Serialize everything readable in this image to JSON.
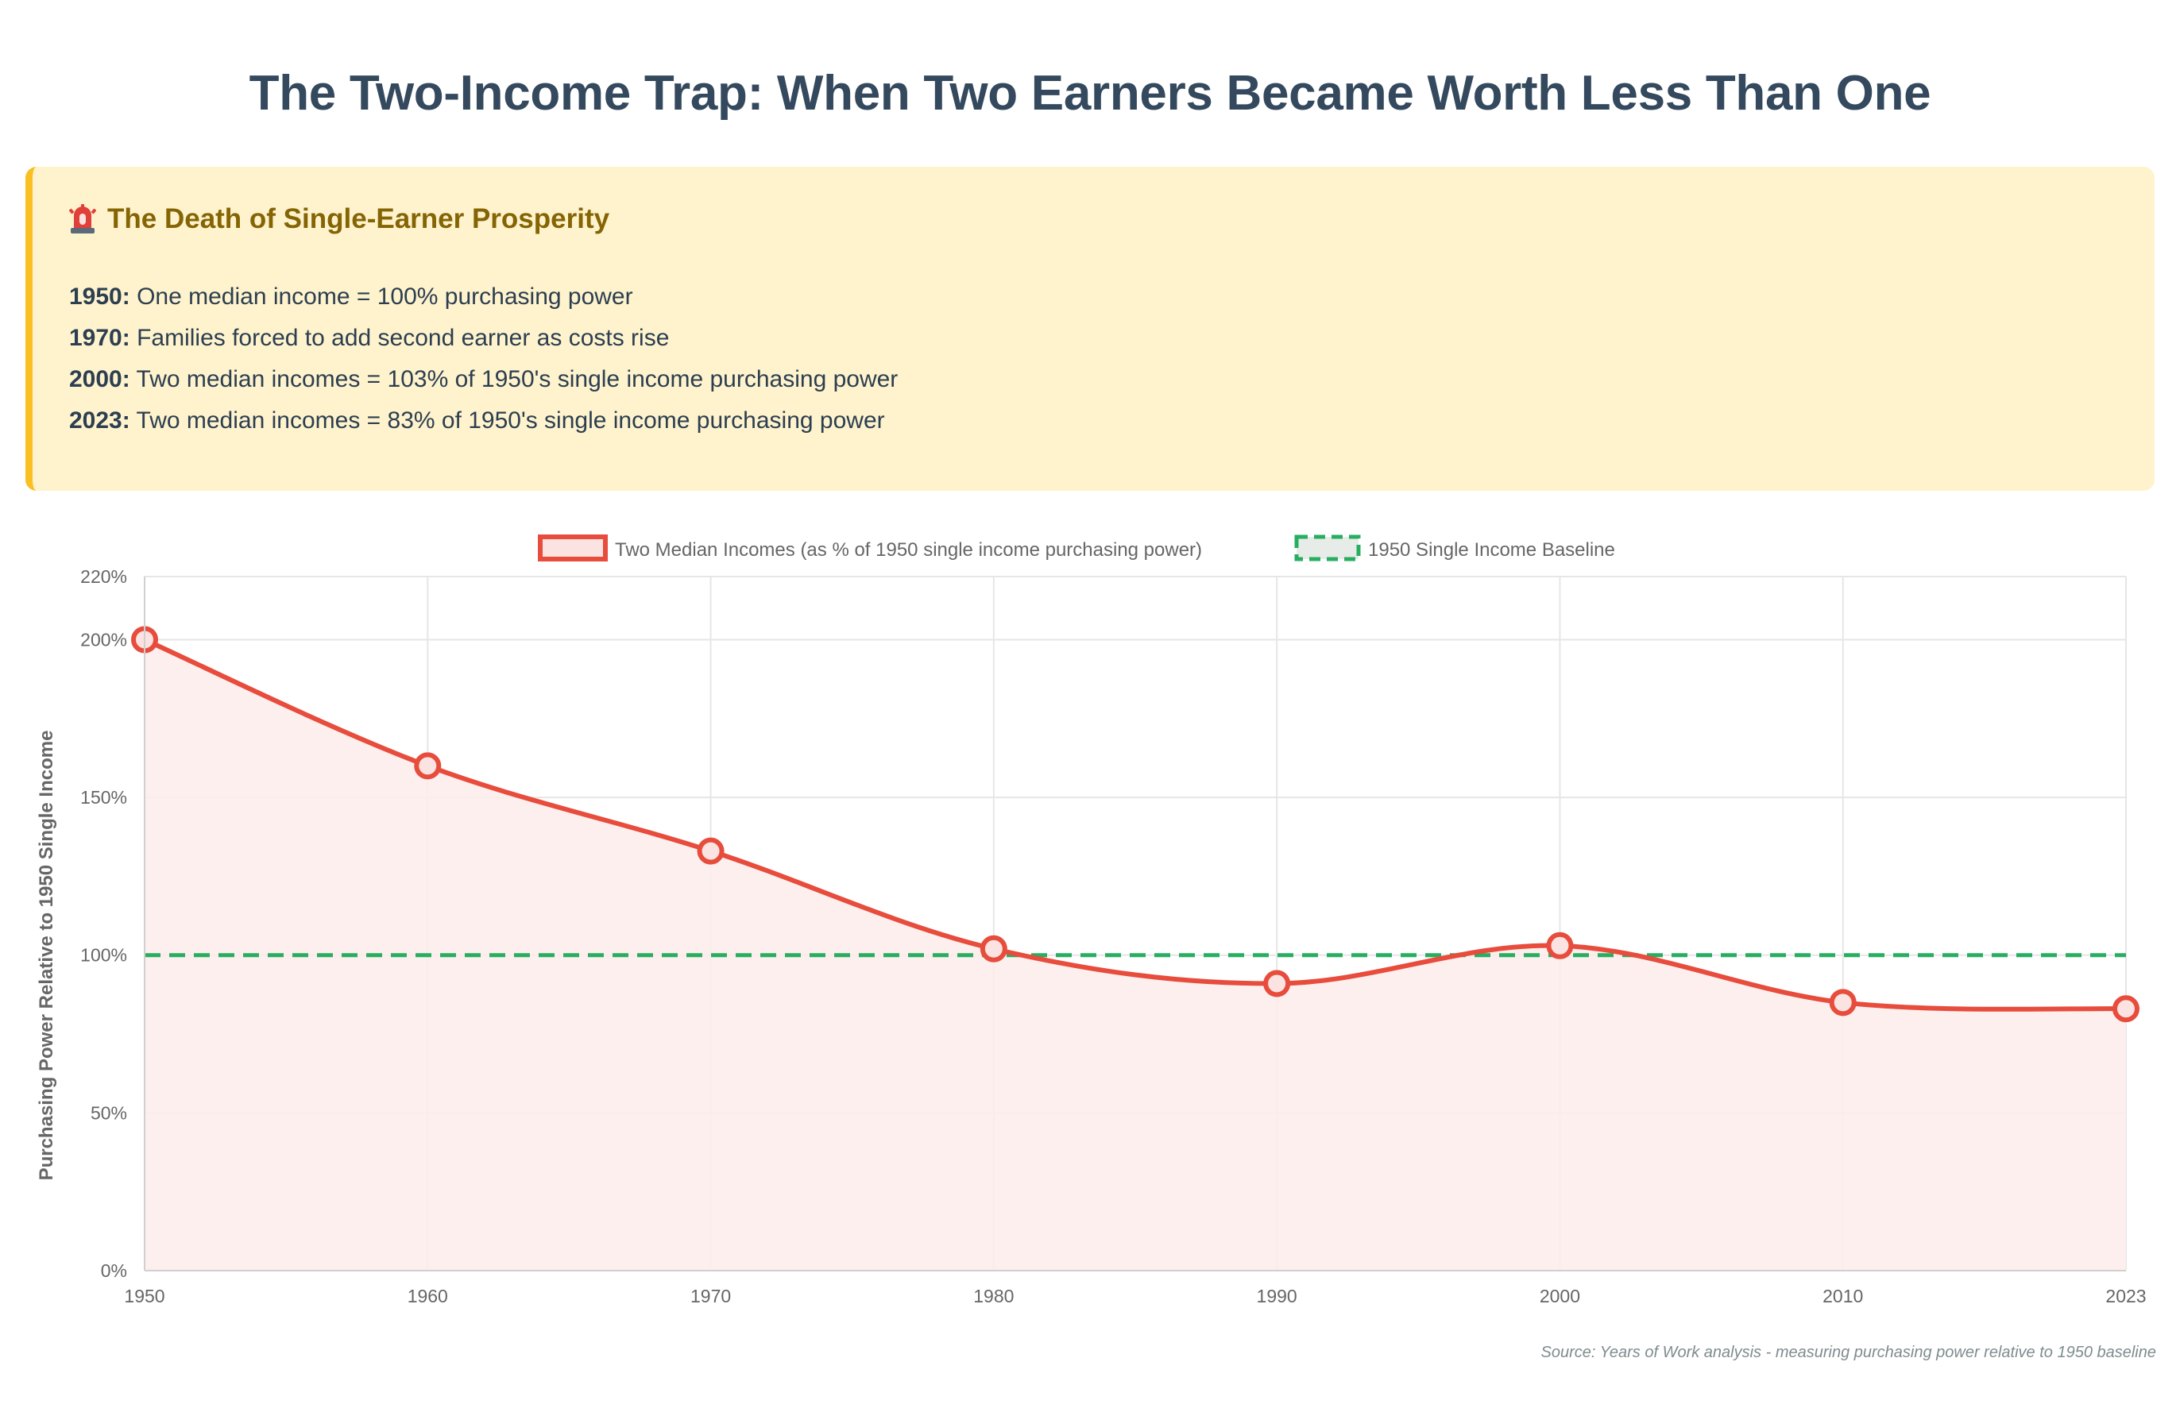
{
  "title": "The Two-Income Trap: When Two Earners Became Worth Less Than One",
  "alert": {
    "heading": "The Death of Single-Earner Prosperity",
    "heading_icon": "siren-icon",
    "lines": [
      {
        "year": "1950:",
        "text": " One median income = 100% purchasing power"
      },
      {
        "year": "1970:",
        "text": " Families forced to add second earner as costs rise"
      },
      {
        "year": "2000:",
        "text": " Two median incomes = 103% of 1950's single income purchasing power"
      },
      {
        "year": "2023:",
        "text": " Two median incomes = 83% of 1950's single income purchasing power"
      }
    ]
  },
  "source": "Source: Years of Work analysis - measuring purchasing power relative to 1950 baseline",
  "colors": {
    "series_line": "#e74c3c",
    "series_fill": "#fdecea",
    "baseline": "#27ae60",
    "grid": "#e6e6e6",
    "alert_bg": "#fef3cd",
    "alert_border": "#fbbf24"
  },
  "chart_data": {
    "type": "line",
    "categories": [
      "1950",
      "1960",
      "1970",
      "1980",
      "1990",
      "2000",
      "2010",
      "2023"
    ],
    "series": [
      {
        "name": "Two Median Incomes (as % of 1950 single income purchasing power)",
        "values": [
          200,
          160,
          133,
          102,
          91,
          103,
          85,
          83
        ],
        "fill": true
      },
      {
        "name": "1950 Single Income Baseline",
        "values": [
          100,
          100,
          100,
          100,
          100,
          100,
          100,
          100
        ],
        "dashed": true
      }
    ],
    "ylabel": "Purchasing Power Relative to 1950 Single Income",
    "xlabel": "",
    "ylim": [
      0,
      220
    ],
    "yticks": [
      0,
      50,
      100,
      150,
      200,
      220
    ],
    "ytick_labels": [
      "0%",
      "50%",
      "100%",
      "150%",
      "200%",
      "220%"
    ],
    "legend_position": "top-center",
    "grid": true
  }
}
